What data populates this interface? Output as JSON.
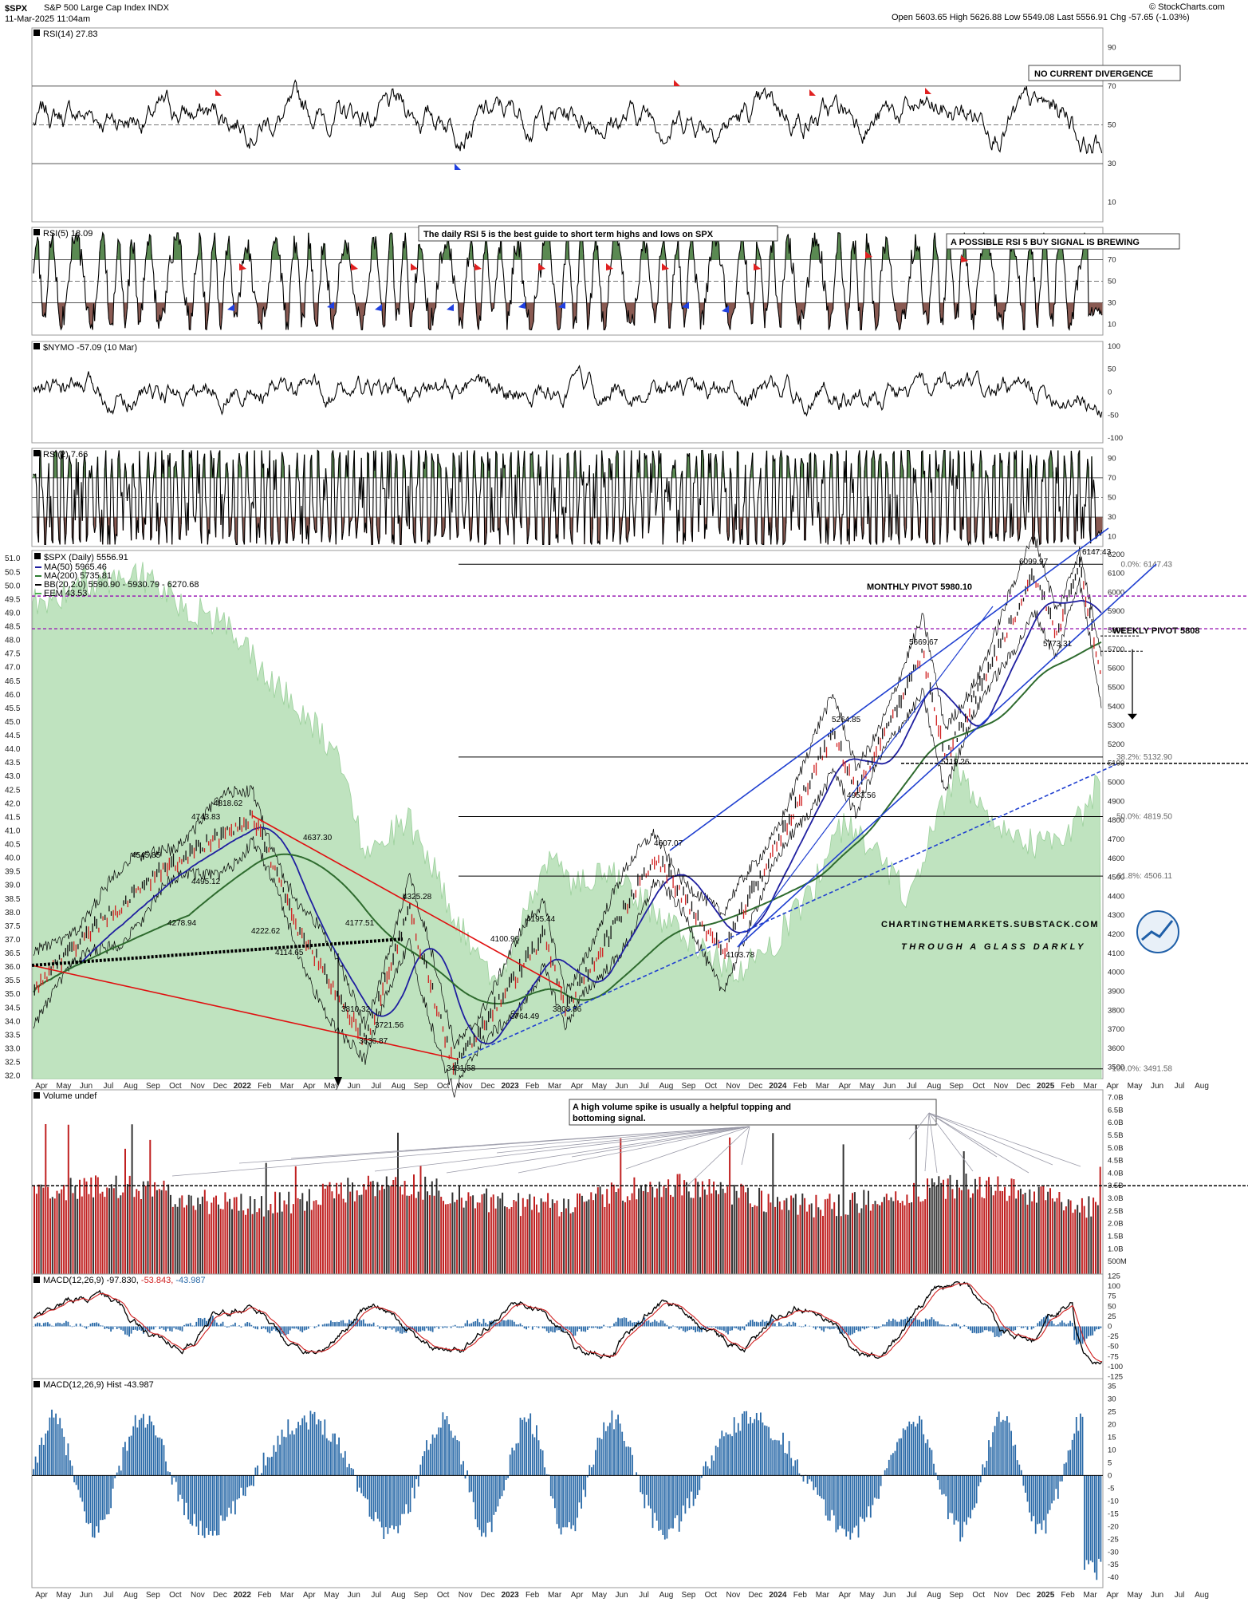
{
  "header": {
    "ticker": "$SPX",
    "name": "S&P 500 Large Cap Index",
    "exchange": "INDX",
    "datetime": "11-Mar-2025 11:04am",
    "stats": "Open 5603.65  High 5626.88  Low 5549.08  Last 5556.91  Chg -57.65 (-1.03%)",
    "copyright": "© StockCharts.com"
  },
  "chart_data": [
    {
      "type": "line",
      "panel": "rsi14",
      "title": "RSI(14) 27.83",
      "y_ticks": [
        "90",
        "70",
        "50",
        "30",
        "10"
      ],
      "ylim": [
        0,
        100
      ],
      "reference_lines": [
        70,
        50,
        30
      ],
      "annotation": "NO CURRENT DIVERGENCE",
      "last_value": 27.83
    },
    {
      "type": "line",
      "panel": "rsi5",
      "title": "RSI(5) 18.09",
      "y_ticks": [
        "90",
        "70",
        "50",
        "30",
        "10"
      ],
      "ylim": [
        0,
        100
      ],
      "reference_lines": [
        70,
        50,
        30
      ],
      "annotations": [
        "The daily RSI 5 is the best guide to short term highs and lows on SPX",
        "A POSSIBLE RSI 5 BUY SIGNAL IS BREWING"
      ],
      "last_value": 18.09
    },
    {
      "type": "line",
      "panel": "nymo",
      "title": "$NYMO -57.09 (10 Mar)",
      "y_ticks": [
        "100",
        "50",
        "0",
        "-50",
        "-100"
      ],
      "ylim": [
        -110,
        110
      ],
      "last_value": -57.09
    },
    {
      "type": "line",
      "panel": "rsi2",
      "title": "RSI(2) 7.66",
      "y_ticks": [
        "90",
        "70",
        "50",
        "30",
        "10"
      ],
      "ylim": [
        0,
        100
      ],
      "reference_lines": [
        70,
        50,
        30
      ],
      "last_value": 7.66
    },
    {
      "type": "line",
      "panel": "price",
      "title": "$SPX (Daily) 5556.91",
      "legend": [
        "MA(50) 5965.46",
        "MA(200) 5735.81",
        "BB(20,2.0) 5590.90 - 5930.79 - 6270.68",
        "EEM 43.53"
      ],
      "legend_colors": [
        "#1f1fa0",
        "#2e7d32",
        "#000000",
        "#4caf50"
      ],
      "y_ticks_right": [
        "6200",
        "6100",
        "6000",
        "5900",
        "5800",
        "5700",
        "5600",
        "5500",
        "5400",
        "5300",
        "5200",
        "5100",
        "5000",
        "4900",
        "4800",
        "4700",
        "4600",
        "4500",
        "4400",
        "4300",
        "4200",
        "4100",
        "4000",
        "3900",
        "3800",
        "3700",
        "3600",
        "3500"
      ],
      "y_ticks_left": [
        "51.0",
        "50.5",
        "50.0",
        "49.5",
        "49.0",
        "48.5",
        "48.0",
        "47.5",
        "47.0",
        "46.5",
        "46.0",
        "45.5",
        "45.0",
        "44.5",
        "44.0",
        "43.5",
        "43.0",
        "42.5",
        "42.0",
        "41.5",
        "41.0",
        "40.5",
        "40.0",
        "39.5",
        "39.0",
        "38.5",
        "38.0",
        "37.5",
        "37.0",
        "36.5",
        "36.0",
        "35.5",
        "35.0",
        "34.5",
        "34.0",
        "33.5",
        "33.0",
        "32.5",
        "32.0"
      ],
      "ylim": [
        3440,
        6220
      ],
      "x_ticks": [
        "Apr",
        "May",
        "Jun",
        "Jul",
        "Aug",
        "Sep",
        "Oct",
        "Nov",
        "Dec",
        "2022",
        "Feb",
        "Mar",
        "Apr",
        "May",
        "Jun",
        "Jul",
        "Aug",
        "Sep",
        "Oct",
        "Nov",
        "Dec",
        "2023",
        "Feb",
        "Mar",
        "Apr",
        "May",
        "Jun",
        "Jul",
        "Aug",
        "Sep",
        "Oct",
        "Nov",
        "Dec",
        "2024",
        "Feb",
        "Mar",
        "Apr",
        "May",
        "Jun",
        "Jul",
        "Aug",
        "Sep",
        "Oct",
        "Nov",
        "Dec",
        "2025",
        "Feb",
        "Mar",
        "Apr",
        "May",
        "Jun",
        "Jul",
        "Aug"
      ],
      "series": [
        {
          "name": "$SPX",
          "x": [
            "2021-03",
            "2021-06",
            "2021-09",
            "2022-01",
            "2022-03",
            "2022-06",
            "2022-08",
            "2022-10",
            "2023-02",
            "2023-03",
            "2023-07",
            "2023-10",
            "2024-03",
            "2024-04",
            "2024-07",
            "2024-08",
            "2024-12",
            "2025-01",
            "2025-02",
            "2025-03"
          ],
          "y": [
            3900,
            4250,
            4545,
            4818,
            4230,
            3636,
            4325,
            3491,
            4195,
            3808,
            4607,
            4103,
            5264,
            4953,
            5669,
            5119,
            6099,
            5773,
            6147,
            5556
          ]
        }
      ],
      "price_labels": [
        "4818.62",
        "4743.83",
        "4545.85",
        "4495.12",
        "4278.94",
        "4222.62",
        "4114.65",
        "4637.30",
        "4177.51",
        "4325.28",
        "3810.32",
        "3721.56",
        "3636.87",
        "3491.58",
        "4100.96",
        "3764.49",
        "4195.44",
        "3808.86",
        "4607.07",
        "4103.78",
        "5264.85",
        "4953.56",
        "5669.67",
        "5119.26",
        "6099.97",
        "6147.43",
        "5773.31"
      ],
      "levels": [
        {
          "label": "MONTHLY PIVOT 5980.10",
          "value": 5980.1
        },
        {
          "label": "WEEKLY PIVOT 5808",
          "value": 5808
        }
      ],
      "fib_levels": [
        {
          "label": "0.0%: 6147.43",
          "value": 6147.43
        },
        {
          "label": "38.2%: 5132.90",
          "value": 5132.9
        },
        {
          "label": "50.0%: 4819.50",
          "value": 4819.5
        },
        {
          "label": "61.8%: 4506.11",
          "value": 4506.11
        },
        {
          "label": "100.0%: 3491.58",
          "value": 3491.58
        }
      ],
      "watermark": [
        "CHARTINGTHEMARKETS.SUBSTACK.COM",
        "THROUGH A GLASS DARKLY"
      ]
    },
    {
      "type": "bar",
      "panel": "volume",
      "title": "Volume undef",
      "y_ticks": [
        "7.0B",
        "6.5B",
        "6.0B",
        "5.5B",
        "5.0B",
        "4.5B",
        "4.0B",
        "3.5B",
        "3.0B",
        "2.5B",
        "2.0B",
        "1.5B",
        "1.0B",
        "500M"
      ],
      "ylim": [
        0,
        7.3
      ],
      "reference_lines": [
        3.5
      ],
      "annotation": "A high volume spike is usually a helpful topping and bottoming signal."
    },
    {
      "type": "line",
      "panel": "macd",
      "title": "MACD(12,26,9) -97.830, -53.843, -43.987",
      "title_parts": [
        "MACD(12,26,9) -97.830,",
        " -53.843,",
        " -43.987"
      ],
      "y_ticks": [
        "125",
        "100",
        "75",
        "50",
        "25",
        "0",
        "-25",
        "-50",
        "-75",
        "-100",
        "-125"
      ],
      "ylim": [
        -130,
        130
      ]
    },
    {
      "type": "bar",
      "panel": "macd_hist",
      "title": "MACD(12,26,9) Hist -43.987",
      "y_ticks": [
        "35",
        "30",
        "25",
        "20",
        "15",
        "10",
        "5",
        "0",
        "-5",
        "-10",
        "-15",
        "-20",
        "-25",
        "-30",
        "-35",
        "-40"
      ],
      "ylim": [
        -44,
        38
      ]
    }
  ]
}
